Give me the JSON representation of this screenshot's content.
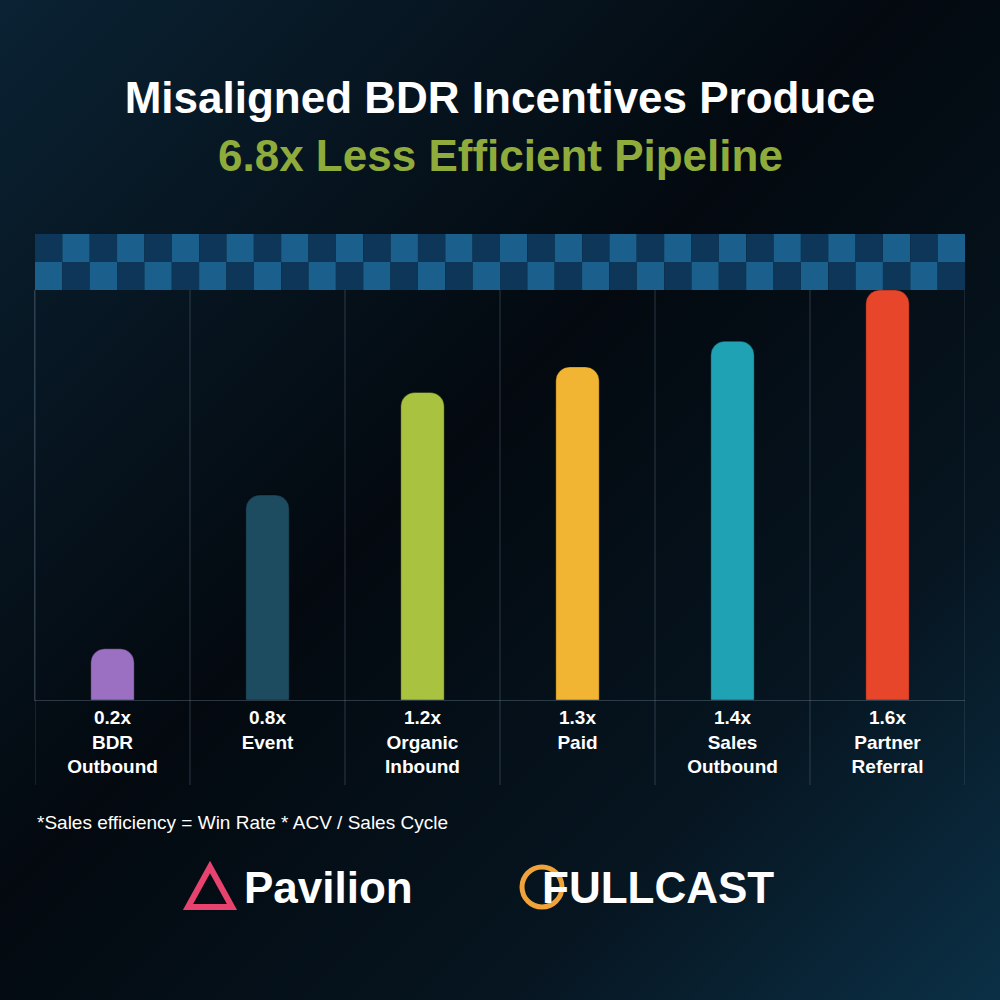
{
  "chart_data": {
    "type": "bar",
    "title": "Misaligned BDR Incentives Produce",
    "subtitle": "6.8x Less Efficient Pipeline",
    "categories": [
      "BDR Outbound",
      "Event",
      "Organic Inbound",
      "Paid",
      "Sales Outbound",
      "Partner Referral"
    ],
    "values": [
      0.2,
      0.8,
      1.2,
      1.3,
      1.4,
      1.6
    ],
    "value_labels": [
      "0.2x",
      "0.8x",
      "1.2x",
      "1.3x",
      "1.4x",
      "1.6x"
    ],
    "colors": [
      "#9b6fc2",
      "#1d4b60",
      "#a9c23f",
      "#f2b533",
      "#1fa2b3",
      "#e8462b"
    ],
    "ylim": [
      0,
      1.6
    ],
    "data_labels": true,
    "tick_labels": "x",
    "grid": false,
    "footnote": "*Sales efficiency = Win Rate * ACV / Sales Cycle",
    "logos": [
      "Pavilion",
      "FULLCAST"
    ]
  }
}
